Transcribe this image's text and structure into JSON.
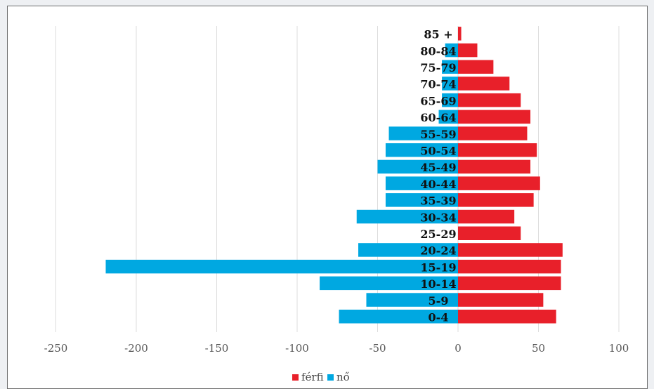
{
  "chart_data": {
    "type": "bar",
    "orientation": "horizontal",
    "categories": [
      "0-4",
      "5-9",
      "10-14",
      "15-19",
      "20-24",
      "25-29",
      "30-34",
      "35-39",
      "40-44",
      "45-49",
      "50-54",
      "55-59",
      "60-64",
      "65-69",
      "70-74",
      "75-79",
      "80-84",
      "85 +"
    ],
    "series": [
      {
        "name": "férfi",
        "color": "#e8202a",
        "values": [
          61,
          53,
          64,
          64,
          65,
          39,
          35,
          47,
          51,
          45,
          49,
          43,
          45,
          39,
          32,
          22,
          12,
          2
        ]
      },
      {
        "name": "nő",
        "color": "#00a8e1",
        "values": [
          -74,
          -57,
          -86,
          -219,
          -62,
          0,
          -63,
          -45,
          -45,
          -50,
          -45,
          -43,
          -12,
          -10,
          -10,
          -10,
          -8,
          0
        ]
      }
    ],
    "xlim": [
      -260,
      100
    ],
    "xticks": [
      "-250",
      "-200",
      "-150",
      "-100",
      "-50",
      "0",
      "50",
      "100"
    ],
    "grid": "vertical",
    "legend_position": "bottom"
  }
}
